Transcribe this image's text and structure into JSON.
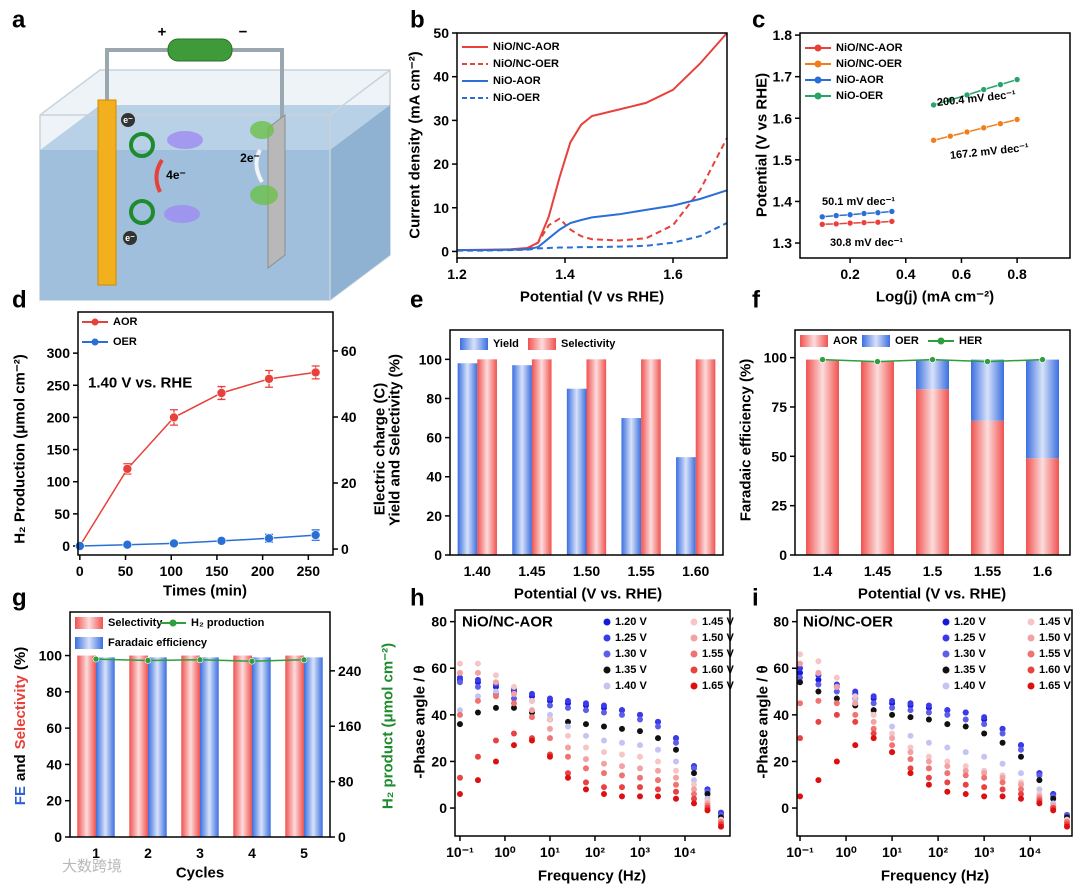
{
  "schematic": {
    "panel": "a",
    "plus": "+",
    "minus": "−",
    "electron_labels": [
      "e⁻",
      "e⁻"
    ],
    "transfer_labels": [
      "4e⁻",
      "2e⁻"
    ]
  },
  "watermark": "大数跨境",
  "chart_data": [
    {
      "type": "line",
      "panel": "b",
      "xlabel": "Potential (V vs RHE)",
      "ylabel": "Current density (mA cm⁻²)",
      "xlim": [
        1.2,
        1.7
      ],
      "xticks": [
        1.2,
        1.4,
        1.6
      ],
      "ylim": [
        -1.5,
        50
      ],
      "yticks": [
        0,
        10,
        20,
        30,
        40,
        50
      ],
      "x": [
        1.2,
        1.25,
        1.3,
        1.33,
        1.35,
        1.37,
        1.39,
        1.41,
        1.43,
        1.45,
        1.5,
        1.55,
        1.6,
        1.65,
        1.7
      ],
      "series": [
        {
          "name": "NiO/NC-AOR",
          "color": "#e8403a",
          "values": [
            0.3,
            0.4,
            0.5,
            0.8,
            2,
            8,
            17,
            25,
            29,
            31,
            32.5,
            34,
            37,
            43,
            50
          ]
        },
        {
          "name": "NiO/NC-OER",
          "color": "#e8403a",
          "dash": true,
          "values": [
            0.3,
            0.3,
            0.4,
            0.6,
            2,
            6,
            7.5,
            5,
            3.5,
            2.8,
            2.5,
            3,
            6,
            14,
            26
          ]
        },
        {
          "name": "NiO-AOR",
          "color": "#2a6fd6",
          "values": [
            0.3,
            0.3,
            0.4,
            0.5,
            1,
            3,
            5,
            6.5,
            7.2,
            7.8,
            8.5,
            9.5,
            10.5,
            12,
            14
          ]
        },
        {
          "name": "NiO-OER",
          "color": "#2a6fd6",
          "dash": true,
          "values": [
            0.2,
            0.2,
            0.3,
            0.4,
            0.7,
            0.8,
            0.9,
            0.9,
            1,
            1,
            1.1,
            1.3,
            2,
            3.5,
            6.5
          ]
        }
      ]
    },
    {
      "type": "line",
      "panel": "c",
      "xlabel": "Log(j) (mA cm⁻²)",
      "ylabel": "Potential (V vs RHE)",
      "xlim": [
        0.02,
        0.99
      ],
      "xticks": [
        0.2,
        0.4,
        0.6,
        0.8
      ],
      "ylim": [
        1.264,
        1.805
      ],
      "yticks": [
        1.3,
        1.4,
        1.5,
        1.6,
        1.7,
        1.8
      ],
      "annotations": [
        "200.4 mV dec⁻¹",
        "167.2 mV dec⁻¹",
        "50.1 mV dec⁻¹",
        "30.8 mV dec⁻¹"
      ],
      "series": [
        {
          "name": "NiO/NC-AOR",
          "color": "#e8403a",
          "marker": "circle",
          "x": [
            0.1,
            0.15,
            0.2,
            0.25,
            0.3,
            0.35
          ],
          "values": [
            1.345,
            1.346,
            1.348,
            1.349,
            1.35,
            1.352
          ]
        },
        {
          "name": "NiO/NC-OER",
          "color": "#f07f1a",
          "marker": "circle",
          "x": [
            0.5,
            0.56,
            0.62,
            0.68,
            0.74,
            0.8
          ],
          "values": [
            1.547,
            1.557,
            1.567,
            1.577,
            1.587,
            1.597
          ]
        },
        {
          "name": "NiO-AOR",
          "color": "#2a6fd6",
          "marker": "circle",
          "x": [
            0.1,
            0.15,
            0.2,
            0.25,
            0.3,
            0.35
          ],
          "values": [
            1.363,
            1.366,
            1.368,
            1.371,
            1.373,
            1.376
          ]
        },
        {
          "name": "NiO-OER",
          "color": "#2aa36b",
          "marker": "circle",
          "x": [
            0.5,
            0.56,
            0.62,
            0.68,
            0.74,
            0.8
          ],
          "values": [
            1.632,
            1.644,
            1.656,
            1.669,
            1.681,
            1.693
          ]
        }
      ]
    },
    {
      "type": "line",
      "panel": "d",
      "xlabel": "Times (min)",
      "ylabel": "H₂ Production (μmol cm⁻²)",
      "y2label": "Electric charge (C)",
      "xlim": [
        -2,
        277
      ],
      "xticks": [
        0,
        50,
        100,
        150,
        200,
        250
      ],
      "ylim": [
        -14,
        364
      ],
      "yticks": [
        0,
        50,
        100,
        150,
        200,
        250,
        300
      ],
      "y2lim": [
        -1.8,
        71.8
      ],
      "y2ticks": [
        0,
        20,
        40,
        60
      ],
      "annotations": [
        "1.40 V vs. RHE"
      ],
      "x": [
        0,
        52,
        103,
        155,
        207,
        258
      ],
      "series": [
        {
          "name": "AOR",
          "color": "#e8403a",
          "marker": "circle",
          "values": [
            0,
            120,
            200,
            238,
            260,
            270
          ],
          "errors": [
            0,
            8,
            12,
            10,
            13,
            10
          ]
        },
        {
          "name": "OER",
          "color": "#2a6fd6",
          "marker": "circle",
          "values": [
            0,
            2,
            4,
            8,
            12,
            17
          ],
          "errors": [
            0,
            2,
            3,
            3,
            6,
            8
          ]
        }
      ]
    },
    {
      "type": "bar",
      "panel": "e",
      "xlabel": "Potential (V vs. RHE)",
      "ylabel": "Yield and Selectivity (%)",
      "categories": [
        "1.40",
        "1.45",
        "1.50",
        "1.55",
        "1.60"
      ],
      "ylim": [
        0,
        115
      ],
      "yticks": [
        0,
        20,
        40,
        60,
        80,
        100
      ],
      "series": [
        {
          "name": "Yield",
          "color": "#3a6fe0",
          "values": [
            98,
            97,
            85,
            70,
            50
          ]
        },
        {
          "name": "Selectivity",
          "color": "#f0524f",
          "values": [
            100,
            100,
            100,
            100,
            100
          ]
        }
      ]
    },
    {
      "type": "bar",
      "panel": "f",
      "stacked": true,
      "xlabel": "Potential (V vs. RHE)",
      "ylabel": "Faradaic efficiency (%)",
      "categories": [
        "1.4",
        "1.45",
        "1.5",
        "1.55",
        "1.6"
      ],
      "ylim": [
        0,
        114
      ],
      "yticks": [
        0,
        25,
        50,
        75,
        100
      ],
      "series": [
        {
          "name": "AOR",
          "color": "#f0524f",
          "values": [
            99,
            98,
            84,
            68,
            49
          ]
        },
        {
          "name": "OER",
          "color": "#3a6fe0",
          "values": [
            0,
            0,
            15,
            31,
            50
          ]
        },
        {
          "name": "HER",
          "color": "#2e9e3e",
          "type": "line",
          "marker": "circle",
          "values": [
            99,
            98,
            99,
            98,
            99
          ]
        }
      ]
    },
    {
      "type": "bar",
      "panel": "g",
      "xlabel": "Cycles",
      "ylabel": [
        {
          "text": "FE",
          "color": "#2f5fd8"
        },
        {
          "text": "and",
          "color": "#000000"
        },
        {
          "text": "Selectivity",
          "color": "#e8403a"
        },
        {
          "text": "(%)",
          "color": "#000000"
        }
      ],
      "y2label": "H₂ product (μmol cm⁻²)",
      "y2label_color": "#1e8c2e",
      "categories": [
        "1",
        "2",
        "3",
        "4",
        "5"
      ],
      "ylim": [
        0,
        124
      ],
      "yticks": [
        0,
        20,
        40,
        60,
        80,
        100
      ],
      "y2lim": [
        0,
        325
      ],
      "y2ticks": [
        0,
        80,
        160,
        240
      ],
      "series": [
        {
          "name": "Selectivity",
          "color": "#f0524f",
          "values": [
            100,
            100,
            100,
            100,
            100
          ]
        },
        {
          "name": "Faradaic efficiency",
          "color": "#3a6fe0",
          "values": [
            99,
            99,
            99,
            99,
            99
          ]
        },
        {
          "name": "H₂ production",
          "color": "#2e9e3e",
          "type": "line",
          "axis": "y2",
          "marker": "circle",
          "values": [
            257,
            255,
            256,
            254,
            256
          ]
        }
      ]
    },
    {
      "type": "scatter",
      "panel": "h",
      "xscale": "log",
      "xlabel": "Frequency (Hz)",
      "ylabel": "-Phase angle / θ",
      "annotations": [
        "NiO/NC-AOR"
      ],
      "xlim": [
        0.0776,
        100000
      ],
      "xticks": [
        {
          "value": 0.1,
          "label": "10⁻¹"
        },
        {
          "value": 1,
          "label": "10⁰"
        },
        {
          "value": 10,
          "label": "10¹"
        },
        {
          "value": 100,
          "label": "10²"
        },
        {
          "value": 1000,
          "label": "10³"
        },
        {
          "value": 10000,
          "label": "10⁴"
        }
      ],
      "ylim": [
        -12,
        85
      ],
      "yticks": [
        0,
        20,
        40,
        60,
        80
      ],
      "x": [
        0.1,
        0.251,
        0.631,
        1.585,
        3.981,
        10,
        25.12,
        63.1,
        158.5,
        398.1,
        1000,
        2512,
        6310,
        15850,
        31620,
        63100
      ],
      "series": [
        {
          "name": "1.20 V",
          "color": "#1818d8",
          "values": [
            55,
            54,
            52,
            50,
            48,
            46,
            45,
            44,
            43,
            42,
            40,
            37,
            30,
            18,
            8,
            -2
          ]
        },
        {
          "name": "1.25 V",
          "color": "#3a3ae8",
          "values": [
            56,
            55,
            53,
            51,
            49,
            47,
            46,
            45,
            44,
            42,
            40,
            37,
            30,
            18,
            8,
            -2
          ]
        },
        {
          "name": "1.30 V",
          "color": "#5d5de8",
          "values": [
            54,
            52,
            49,
            47,
            46,
            44,
            43,
            42,
            41,
            40,
            38,
            35,
            28,
            17,
            7,
            -3
          ]
        },
        {
          "name": "1.35 V",
          "color": "#111111",
          "values": [
            36,
            41,
            43,
            43,
            41,
            38,
            37,
            36,
            35,
            34,
            33,
            30,
            25,
            15,
            6,
            -4
          ]
        },
        {
          "name": "1.40 V",
          "color": "#c4c4f2",
          "values": [
            42,
            48,
            50,
            49,
            46,
            40,
            35,
            31,
            29,
            28,
            27,
            25,
            20,
            12,
            4,
            -5
          ]
        },
        {
          "name": "1.45 V",
          "color": "#f6c6c6",
          "values": [
            62,
            62,
            57,
            52,
            46,
            38,
            31,
            26,
            24,
            23,
            22,
            20,
            16,
            10,
            3,
            -5
          ]
        },
        {
          "name": "1.50 V",
          "color": "#f2a2a2",
          "values": [
            58,
            58,
            54,
            49,
            42,
            34,
            26,
            21,
            19,
            18,
            17,
            16,
            13,
            8,
            2,
            -6
          ]
        },
        {
          "name": "1.55 V",
          "color": "#ef7373",
          "values": [
            40,
            46,
            48,
            45,
            39,
            30,
            22,
            17,
            15,
            14,
            13,
            12,
            10,
            6,
            1,
            -6
          ]
        },
        {
          "name": "1.60 V",
          "color": "#e84343",
          "values": [
            13,
            22,
            29,
            32,
            30,
            23,
            15,
            11,
            9,
            9,
            9,
            8,
            7,
            4,
            0,
            -7
          ]
        },
        {
          "name": "1.65 V",
          "color": "#dc1010",
          "values": [
            6,
            12,
            20,
            27,
            29,
            22,
            13,
            8,
            6,
            5,
            5,
            5,
            4,
            2,
            -1,
            -8
          ]
        }
      ]
    },
    {
      "type": "scatter",
      "panel": "i",
      "xscale": "log",
      "xlabel": "Frequency (Hz)",
      "ylabel": "-Phase angle / θ",
      "annotations": [
        "NiO/NC-OER"
      ],
      "xlim": [
        0.086,
        81000
      ],
      "xticks": [
        {
          "value": 0.1,
          "label": "10⁻¹"
        },
        {
          "value": 1,
          "label": "10⁰"
        },
        {
          "value": 10,
          "label": "10¹"
        },
        {
          "value": 100,
          "label": "10²"
        },
        {
          "value": 1000,
          "label": "10³"
        },
        {
          "value": 10000,
          "label": "10⁴"
        }
      ],
      "ylim": [
        -12,
        85
      ],
      "yticks": [
        0,
        20,
        40,
        60,
        80
      ],
      "x": [
        0.1,
        0.251,
        0.631,
        1.585,
        3.981,
        10,
        25.12,
        63.1,
        158.5,
        398.1,
        1000,
        2512,
        6310,
        15850,
        31620,
        63100
      ],
      "series": [
        {
          "name": "1.20 V",
          "color": "#1818d8",
          "values": [
            58,
            55,
            52,
            49,
            47,
            45,
            44,
            43,
            42,
            41,
            38,
            34,
            27,
            15,
            6,
            -3
          ]
        },
        {
          "name": "1.25 V",
          "color": "#3a3ae8",
          "values": [
            60,
            57,
            53,
            50,
            48,
            46,
            45,
            44,
            42,
            41,
            39,
            34,
            27,
            15,
            6,
            -3
          ]
        },
        {
          "name": "1.30 V",
          "color": "#5d5de8",
          "values": [
            56,
            53,
            50,
            47,
            45,
            43,
            42,
            41,
            40,
            38,
            36,
            32,
            25,
            14,
            5,
            -3
          ]
        },
        {
          "name": "1.35 V",
          "color": "#111111",
          "values": [
            54,
            50,
            47,
            44,
            42,
            40,
            39,
            38,
            36,
            35,
            32,
            28,
            22,
            12,
            4,
            -4
          ]
        },
        {
          "name": "1.40 V",
          "color": "#c4c4f2",
          "values": [
            62,
            58,
            52,
            46,
            40,
            35,
            31,
            28,
            26,
            24,
            22,
            19,
            15,
            8,
            2,
            -5
          ]
        },
        {
          "name": "1.45 V",
          "color": "#f6c6c6",
          "values": [
            66,
            63,
            56,
            48,
            40,
            32,
            26,
            22,
            20,
            18,
            16,
            14,
            11,
            6,
            1,
            -5
          ]
        },
        {
          "name": "1.50 V",
          "color": "#f2a2a2",
          "values": [
            62,
            58,
            52,
            45,
            37,
            30,
            24,
            20,
            18,
            16,
            15,
            13,
            10,
            5,
            1,
            -6
          ]
        },
        {
          "name": "1.55 V",
          "color": "#ef7373",
          "values": [
            45,
            46,
            45,
            40,
            34,
            27,
            21,
            17,
            15,
            14,
            13,
            11,
            8,
            4,
            0,
            -6
          ]
        },
        {
          "name": "1.60 V",
          "color": "#e84343",
          "values": [
            30,
            37,
            40,
            37,
            32,
            24,
            17,
            13,
            11,
            10,
            9,
            8,
            6,
            3,
            0,
            -7
          ]
        },
        {
          "name": "1.65 V",
          "color": "#dc1010",
          "values": [
            5,
            12,
            20,
            27,
            30,
            24,
            15,
            10,
            7,
            6,
            5,
            5,
            4,
            2,
            -1,
            -8
          ]
        }
      ]
    }
  ]
}
